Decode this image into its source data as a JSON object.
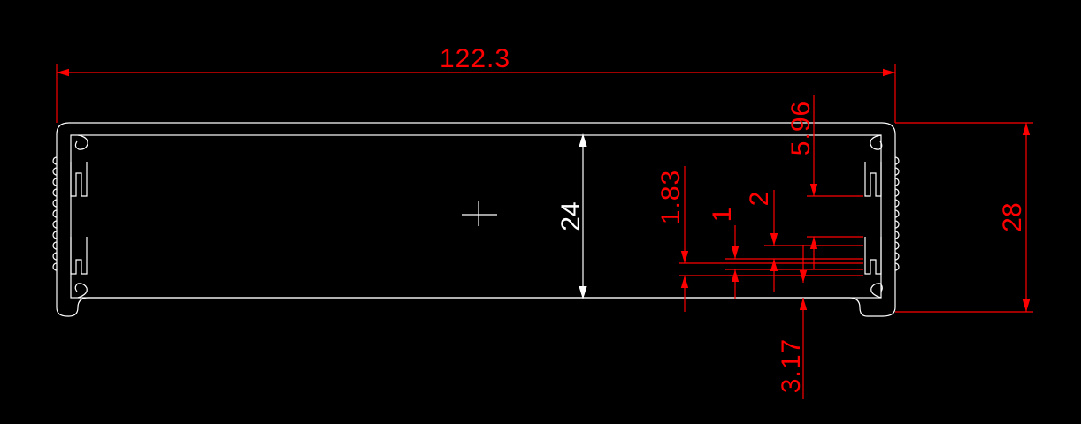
{
  "drawing": {
    "colors": {
      "background": "#000000",
      "outline": "#ffffff",
      "dimension": "#ff0000"
    },
    "dimensions": {
      "overall_width": "122.3",
      "overall_height": "28",
      "inner_height": "24",
      "slot_depth": "5.96",
      "slot_width": "2",
      "rib_thickness": "1",
      "rib_pitch": "1.83",
      "bottom_offset": "3.17"
    }
  }
}
